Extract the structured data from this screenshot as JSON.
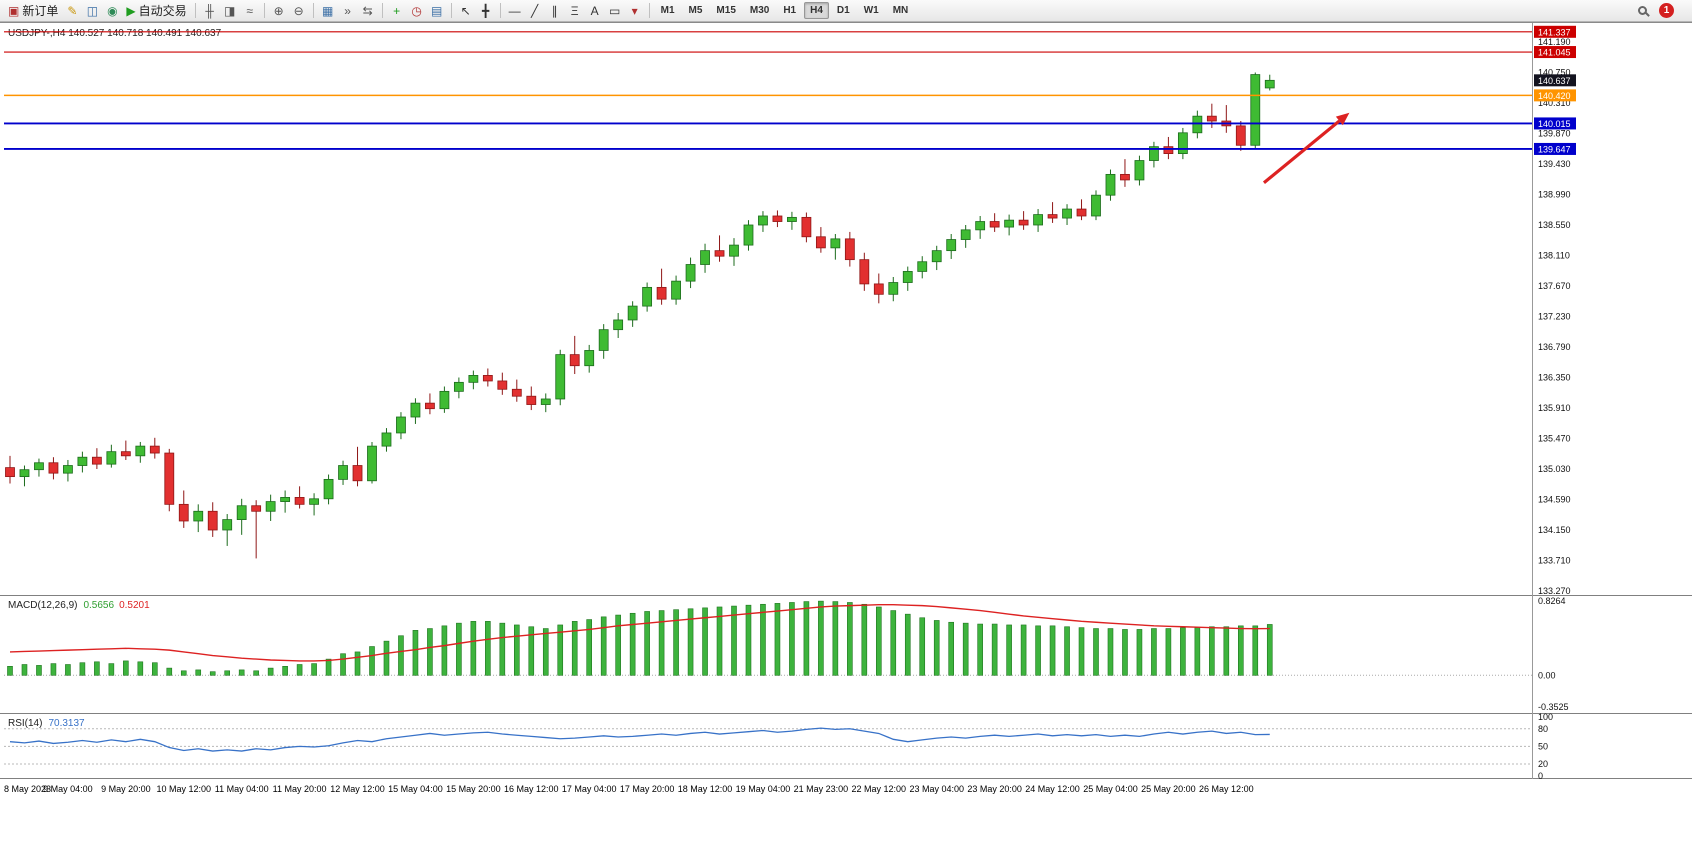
{
  "toolbar": {
    "buttons": [
      {
        "name": "new-order-button",
        "glyph": "▣",
        "glyph_color": "#b03030",
        "label": "新订单"
      },
      {
        "name": "meta-editor-button",
        "glyph": "✎",
        "glyph_color": "#c8960c"
      },
      {
        "name": "terminal-button",
        "glyph": "◫",
        "glyph_color": "#3a6ea5"
      },
      {
        "name": "community-button",
        "glyph": "◉",
        "glyph_color": "#2e8b57"
      },
      {
        "name": "autotrading-button",
        "glyph": "▶",
        "glyph_color": "#1f9d1f",
        "label": "自动交易"
      },
      {
        "sep": true
      },
      {
        "name": "bar-chart-button",
        "glyph": "╫",
        "glyph_color": "#555"
      },
      {
        "name": "candlestick-chart-button",
        "glyph": "◨",
        "glyph_color": "#555"
      },
      {
        "name": "line-chart-button",
        "glyph": "≈",
        "glyph_color": "#555"
      },
      {
        "sep": true
      },
      {
        "name": "zoom-in-button",
        "glyph": "⊕",
        "glyph_color": "#555"
      },
      {
        "name": "zoom-out-button",
        "glyph": "⊖",
        "glyph_color": "#555"
      },
      {
        "sep": true
      },
      {
        "name": "tile-windows-button",
        "glyph": "▦",
        "glyph_color": "#3a6ea5"
      },
      {
        "name": "auto-scroll-button",
        "glyph": "»",
        "glyph_color": "#555"
      },
      {
        "name": "chart-shift-button",
        "glyph": "⇆",
        "glyph_color": "#555"
      },
      {
        "sep": true
      },
      {
        "name": "indicators-button",
        "glyph": "+",
        "glyph_color": "#1f9d1f"
      },
      {
        "name": "periods-button",
        "glyph": "◷",
        "glyph_color": "#b03030"
      },
      {
        "name": "templates-button",
        "glyph": "▤",
        "glyph_color": "#3a6ea5"
      },
      {
        "sep": true
      },
      {
        "name": "cursor-button",
        "glyph": "↖",
        "glyph_color": "#333"
      },
      {
        "name": "crosshair-button",
        "glyph": "╋",
        "glyph_color": "#333"
      },
      {
        "sep": true
      },
      {
        "name": "horizontal-line-button",
        "glyph": "―",
        "glyph_color": "#333"
      },
      {
        "name": "trendline-button",
        "glyph": "╱",
        "glyph_color": "#333"
      },
      {
        "name": "channel-button",
        "glyph": "∥",
        "glyph_color": "#333"
      },
      {
        "name": "fibonacci-button",
        "glyph": "Ξ",
        "glyph_color": "#333"
      },
      {
        "name": "text-button",
        "glyph": "A",
        "glyph_color": "#333"
      },
      {
        "name": "text-label-button",
        "glyph": "▭",
        "glyph_color": "#333"
      },
      {
        "name": "arrows-button",
        "glyph": "▾",
        "glyph_color": "#b03030"
      },
      {
        "sep": true
      }
    ],
    "timeframes": [
      {
        "label": "M1",
        "active": false
      },
      {
        "label": "M5",
        "active": false
      },
      {
        "label": "M15",
        "active": false
      },
      {
        "label": "M30",
        "active": false
      },
      {
        "label": "H1",
        "active": false
      },
      {
        "label": "H4",
        "active": true
      },
      {
        "label": "D1",
        "active": false
      },
      {
        "label": "W1",
        "active": false
      },
      {
        "label": "MN",
        "active": false
      }
    ],
    "notification_count": "1"
  },
  "chart_data": [
    {
      "type": "candlestick",
      "title": "USDJPY-,H4  140.527 140.718 140.491 140.637",
      "symbol": "USDJPY-",
      "timeframe": "H4",
      "ylim": [
        133.23,
        141.46
      ],
      "y_axis_ticks": [
        "141.190",
        "140.750",
        "140.310",
        "139.870",
        "139.430",
        "138.990",
        "138.550",
        "138.110",
        "137.670",
        "137.230",
        "136.790",
        "136.350",
        "135.910",
        "135.470",
        "135.030",
        "134.590",
        "134.150",
        "133.710",
        "133.270"
      ],
      "time_labels": [
        "8 May 2023",
        "9 May 04:00",
        "9 May 20:00",
        "10 May 12:00",
        "11 May 04:00",
        "11 May 20:00",
        "12 May 12:00",
        "15 May 04:00",
        "15 May 20:00",
        "16 May 12:00",
        "17 May 04:00",
        "17 May 20:00",
        "18 May 12:00",
        "19 May 04:00",
        "21 May 23:00",
        "22 May 12:00",
        "23 May 04:00",
        "23 May 20:00",
        "24 May 12:00",
        "25 May 04:00",
        "25 May 20:00",
        "26 May 12:00"
      ],
      "ohlc": [
        [
          135.05,
          135.22,
          134.82,
          134.92
        ],
        [
          134.92,
          135.08,
          134.78,
          135.02
        ],
        [
          135.02,
          135.18,
          134.92,
          135.12
        ],
        [
          135.12,
          135.2,
          134.88,
          134.97
        ],
        [
          134.97,
          135.16,
          134.85,
          135.08
        ],
        [
          135.08,
          135.28,
          134.98,
          135.2
        ],
        [
          135.2,
          135.33,
          135.03,
          135.1
        ],
        [
          135.1,
          135.38,
          135.05,
          135.28
        ],
        [
          135.28,
          135.44,
          135.16,
          135.22
        ],
        [
          135.22,
          135.42,
          135.12,
          135.36
        ],
        [
          135.36,
          135.48,
          135.18,
          135.26
        ],
        [
          135.26,
          135.32,
          134.42,
          134.52
        ],
        [
          134.52,
          134.72,
          134.18,
          134.28
        ],
        [
          134.28,
          134.52,
          134.12,
          134.42
        ],
        [
          134.42,
          134.55,
          134.05,
          134.15
        ],
        [
          134.15,
          134.38,
          133.92,
          134.3
        ],
        [
          134.3,
          134.6,
          134.08,
          134.5
        ],
        [
          134.5,
          134.58,
          133.74,
          134.42
        ],
        [
          134.42,
          134.66,
          134.28,
          134.56
        ],
        [
          134.56,
          134.72,
          134.4,
          134.62
        ],
        [
          134.62,
          134.78,
          134.46,
          134.52
        ],
        [
          134.52,
          134.68,
          134.36,
          134.6
        ],
        [
          134.6,
          134.95,
          134.52,
          134.88
        ],
        [
          134.88,
          135.15,
          134.8,
          135.08
        ],
        [
          135.08,
          135.35,
          134.78,
          134.86
        ],
        [
          134.86,
          135.42,
          134.82,
          135.36
        ],
        [
          135.36,
          135.62,
          135.28,
          135.55
        ],
        [
          135.55,
          135.85,
          135.46,
          135.78
        ],
        [
          135.78,
          136.05,
          135.68,
          135.98
        ],
        [
          135.98,
          136.12,
          135.82,
          135.9
        ],
        [
          135.9,
          136.22,
          135.84,
          136.15
        ],
        [
          136.15,
          136.35,
          136.05,
          136.28
        ],
        [
          136.28,
          136.45,
          136.18,
          136.38
        ],
        [
          136.38,
          136.48,
          136.22,
          136.3
        ],
        [
          136.3,
          136.42,
          136.1,
          136.18
        ],
        [
          136.18,
          136.32,
          136.0,
          136.08
        ],
        [
          136.08,
          136.22,
          135.88,
          135.96
        ],
        [
          135.96,
          136.12,
          135.85,
          136.04
        ],
        [
          136.04,
          136.75,
          135.95,
          136.68
        ],
        [
          136.68,
          136.95,
          136.4,
          136.52
        ],
        [
          136.52,
          136.82,
          136.42,
          136.74
        ],
        [
          136.74,
          137.12,
          136.62,
          137.04
        ],
        [
          137.04,
          137.28,
          136.92,
          137.18
        ],
        [
          137.18,
          137.45,
          137.08,
          137.38
        ],
        [
          137.38,
          137.72,
          137.3,
          137.65
        ],
        [
          137.65,
          137.92,
          137.4,
          137.48
        ],
        [
          137.48,
          137.82,
          137.4,
          137.74
        ],
        [
          137.74,
          138.08,
          137.64,
          137.98
        ],
        [
          137.98,
          138.28,
          137.86,
          138.18
        ],
        [
          138.18,
          138.4,
          138.02,
          138.1
        ],
        [
          138.1,
          138.36,
          137.96,
          138.26
        ],
        [
          138.26,
          138.62,
          138.18,
          138.55
        ],
        [
          138.55,
          138.75,
          138.45,
          138.68
        ],
        [
          138.68,
          138.76,
          138.52,
          138.6
        ],
        [
          138.6,
          138.74,
          138.48,
          138.66
        ],
        [
          138.66,
          138.73,
          138.3,
          138.38
        ],
        [
          138.38,
          138.52,
          138.15,
          138.22
        ],
        [
          138.22,
          138.42,
          138.05,
          138.35
        ],
        [
          138.35,
          138.45,
          137.95,
          138.05
        ],
        [
          138.05,
          138.15,
          137.6,
          137.7
        ],
        [
          137.7,
          137.85,
          137.42,
          137.55
        ],
        [
          137.55,
          137.8,
          137.45,
          137.72
        ],
        [
          137.72,
          137.95,
          137.6,
          137.88
        ],
        [
          137.88,
          138.1,
          137.78,
          138.02
        ],
        [
          138.02,
          138.25,
          137.9,
          138.18
        ],
        [
          138.18,
          138.42,
          138.06,
          138.34
        ],
        [
          138.34,
          138.55,
          138.22,
          138.48
        ],
        [
          138.48,
          138.68,
          138.35,
          138.6
        ],
        [
          138.6,
          138.72,
          138.45,
          138.52
        ],
        [
          138.52,
          138.7,
          138.4,
          138.62
        ],
        [
          138.62,
          138.75,
          138.48,
          138.55
        ],
        [
          138.55,
          138.78,
          138.45,
          138.7
        ],
        [
          138.7,
          138.88,
          138.58,
          138.65
        ],
        [
          138.65,
          138.85,
          138.55,
          138.78
        ],
        [
          138.78,
          138.92,
          138.62,
          138.68
        ],
        [
          138.68,
          139.05,
          138.62,
          138.98
        ],
        [
          138.98,
          139.35,
          138.9,
          139.28
        ],
        [
          139.28,
          139.5,
          139.1,
          139.2
        ],
        [
          139.2,
          139.55,
          139.12,
          139.48
        ],
        [
          139.48,
          139.75,
          139.38,
          139.68
        ],
        [
          139.68,
          139.82,
          139.5,
          139.58
        ],
        [
          139.58,
          139.95,
          139.5,
          139.88
        ],
        [
          139.88,
          140.2,
          139.8,
          140.12
        ],
        [
          140.12,
          140.3,
          139.95,
          140.05
        ],
        [
          140.05,
          140.28,
          139.88,
          139.98
        ],
        [
          139.98,
          140.05,
          139.62,
          139.7
        ],
        [
          139.7,
          140.75,
          139.65,
          140.72
        ],
        [
          140.527,
          140.718,
          140.491,
          140.637
        ]
      ],
      "levels": [
        {
          "price": 141.337,
          "color": "#cc0000",
          "label": "141.337",
          "width": 1.2
        },
        {
          "price": 141.045,
          "color": "#cc0000",
          "label": "141.045",
          "width": 1.2
        },
        {
          "price": 140.42,
          "color": "#ff9400",
          "label": "140.420",
          "width": 1.5
        },
        {
          "price": 140.015,
          "color": "#0000cc",
          "label": "140.015",
          "width": 1.8
        },
        {
          "price": 139.647,
          "color": "#0000cc",
          "label": "139.647",
          "width": 1.8
        }
      ],
      "current_price": {
        "value": 140.637,
        "label": "140.637",
        "badge_color": "#13131f"
      },
      "arrow": {
        "from": {
          "i": 86.6,
          "price": 139.16
        },
        "to": {
          "i": 92.5,
          "price": 140.17
        },
        "color": "#dd2222"
      }
    },
    {
      "type": "bar",
      "title": "MACD(12,26,9)",
      "value_main": "0.5656",
      "value_signal": "0.5201",
      "ylim": [
        -0.3525,
        0.8264
      ],
      "y_axis_ticks": [
        "0.8264",
        "0.00",
        "-0.3525"
      ],
      "macd": [
        0.1,
        0.12,
        0.11,
        0.13,
        0.12,
        0.14,
        0.15,
        0.13,
        0.16,
        0.15,
        0.14,
        0.08,
        0.05,
        0.06,
        0.04,
        0.05,
        0.06,
        0.05,
        0.08,
        0.1,
        0.12,
        0.13,
        0.18,
        0.24,
        0.26,
        0.32,
        0.38,
        0.44,
        0.5,
        0.52,
        0.55,
        0.58,
        0.6,
        0.6,
        0.58,
        0.56,
        0.54,
        0.52,
        0.56,
        0.6,
        0.62,
        0.65,
        0.67,
        0.69,
        0.71,
        0.72,
        0.73,
        0.74,
        0.75,
        0.76,
        0.77,
        0.78,
        0.79,
        0.8,
        0.81,
        0.82,
        0.825,
        0.82,
        0.81,
        0.79,
        0.76,
        0.72,
        0.68,
        0.64,
        0.61,
        0.59,
        0.58,
        0.57,
        0.57,
        0.56,
        0.56,
        0.55,
        0.55,
        0.54,
        0.53,
        0.52,
        0.52,
        0.51,
        0.51,
        0.52,
        0.52,
        0.53,
        0.53,
        0.54,
        0.54,
        0.55,
        0.55,
        0.5656
      ],
      "signal": [
        0.26,
        0.265,
        0.27,
        0.275,
        0.28,
        0.285,
        0.29,
        0.295,
        0.3,
        0.295,
        0.29,
        0.28,
        0.26,
        0.24,
        0.22,
        0.205,
        0.19,
        0.18,
        0.17,
        0.165,
        0.16,
        0.16,
        0.165,
        0.18,
        0.2,
        0.22,
        0.245,
        0.265,
        0.285,
        0.31,
        0.33,
        0.355,
        0.38,
        0.4,
        0.42,
        0.435,
        0.45,
        0.465,
        0.48,
        0.495,
        0.51,
        0.53,
        0.55,
        0.565,
        0.58,
        0.595,
        0.61,
        0.625,
        0.64,
        0.655,
        0.67,
        0.685,
        0.7,
        0.715,
        0.73,
        0.745,
        0.76,
        0.77,
        0.775,
        0.78,
        0.785,
        0.785,
        0.78,
        0.775,
        0.765,
        0.75,
        0.735,
        0.72,
        0.7,
        0.68,
        0.66,
        0.645,
        0.63,
        0.615,
        0.6,
        0.59,
        0.58,
        0.57,
        0.56,
        0.55,
        0.545,
        0.54,
        0.535,
        0.53,
        0.525,
        0.52,
        0.518,
        0.5201
      ]
    },
    {
      "type": "line",
      "title": "RSI(14)",
      "value": "70.3137",
      "ylim": [
        0,
        100
      ],
      "levels": [
        80,
        50,
        20
      ],
      "y_axis_ticks": [
        "100",
        "80",
        "50",
        "20",
        "0"
      ],
      "values": [
        58,
        56,
        59,
        55,
        57,
        60,
        57,
        61,
        58,
        62,
        58,
        48,
        43,
        46,
        42,
        44,
        42,
        46,
        44,
        48,
        50,
        49,
        51,
        56,
        60,
        58,
        63,
        66,
        69,
        72,
        69,
        71,
        73,
        74,
        71,
        69,
        67,
        65,
        63,
        64,
        66,
        68,
        66,
        67,
        69,
        71,
        69,
        72,
        74,
        71,
        73,
        75,
        77,
        74,
        76,
        79,
        81,
        79,
        80,
        76,
        72,
        62,
        58,
        61,
        64,
        66,
        64,
        67,
        69,
        67,
        69,
        71,
        68,
        70,
        68,
        70,
        67,
        69,
        67,
        71,
        74,
        71,
        74,
        76,
        72,
        74,
        70,
        70.31
      ]
    }
  ]
}
